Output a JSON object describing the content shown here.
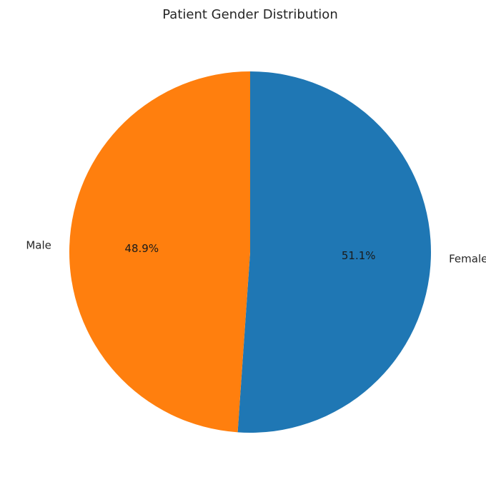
{
  "chart_data": {
    "type": "pie",
    "title": "Patient Gender Distribution",
    "start_angle_deg": 90,
    "direction": "clockwise",
    "slices": [
      {
        "label": "Female",
        "value": 51.1,
        "pct_label": "51.1%",
        "color": "#1f77b4"
      },
      {
        "label": "Male",
        "value": 48.9,
        "pct_label": "48.9%",
        "color": "#ff7f0e"
      }
    ]
  }
}
